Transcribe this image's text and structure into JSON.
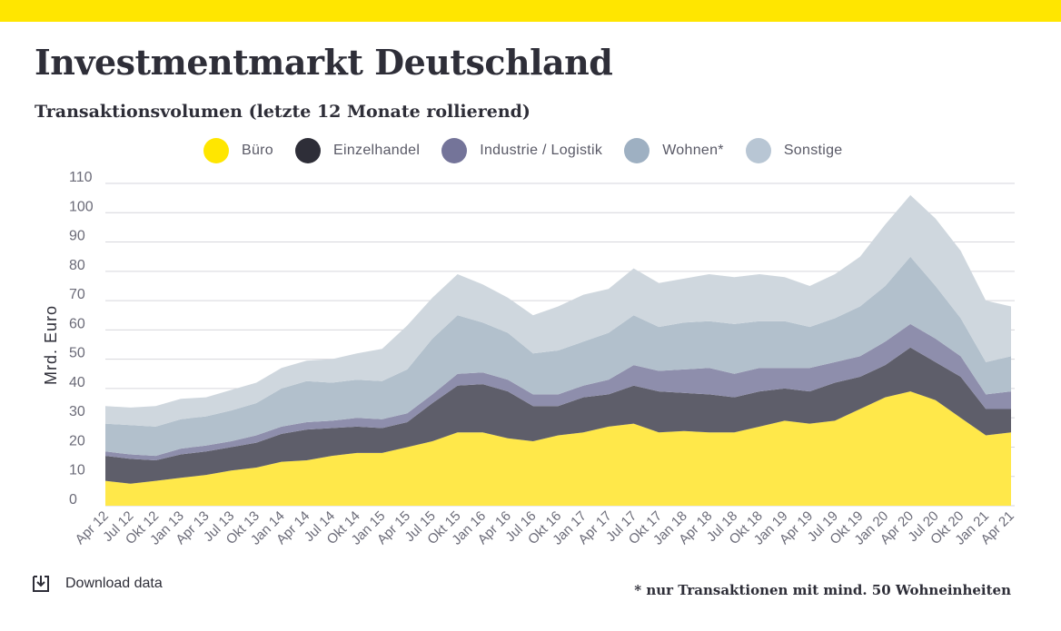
{
  "page": {
    "title": "Investmentmarkt Deutschland",
    "subtitle": "Transaktionsvolumen (letzte 12 Monate rollierend)",
    "download_label": "Download data",
    "footnote": "* nur Transaktionen mit mind. 50 Wohneinheiten"
  },
  "colors": {
    "brand_yellow": "#ffe600",
    "buero": "#ffe84a",
    "einzelhandel": "#5e5e6a",
    "industrie": "#8e8eac",
    "wohnen": "#b2c0cc",
    "sonstige": "#cfd7de"
  },
  "icons": {
    "download": "download-icon"
  },
  "chart_data": {
    "type": "area",
    "stacked": true,
    "ylabel": "Mrd. Euro",
    "xlabel": "",
    "ylim": [
      0,
      110
    ],
    "yticks": [
      0,
      10,
      20,
      30,
      40,
      50,
      60,
      70,
      80,
      90,
      100,
      110
    ],
    "grid": true,
    "legend_position": "top",
    "legend": [
      {
        "label": "Büro",
        "color": "#ffe600"
      },
      {
        "label": "Einzelhandel",
        "color": "#2e2e38"
      },
      {
        "label": "Industrie / Logistik",
        "color": "#747499"
      },
      {
        "label": "Wohnen*",
        "color": "#9eb0c2"
      },
      {
        "label": "Sonstige",
        "color": "#b8c6d4"
      }
    ],
    "x": [
      "Apr 12",
      "Jul 12",
      "Okt 12",
      "Jan 13",
      "Apr 13",
      "Jul 13",
      "Okt 13",
      "Jan 14",
      "Apr 14",
      "Jul 14",
      "Okt 14",
      "Jan 15",
      "Apr 15",
      "Jul 15",
      "Okt 15",
      "Jan 16",
      "Apr 16",
      "Jul 16",
      "Okt 16",
      "Jan 17",
      "Apr 17",
      "Jul 17",
      "Okt 17",
      "Jan 18",
      "Apr 18",
      "Jul 18",
      "Okt 18",
      "Jan 19",
      "Apr 19",
      "Jul 19",
      "Okt 19",
      "Jan 20",
      "Apr 20",
      "Jul 20",
      "Okt 20",
      "Jan 21",
      "Apr 21"
    ],
    "series": [
      {
        "name": "Büro",
        "color": "#ffe84a",
        "values": [
          8.5,
          7.5,
          8.5,
          9.5,
          10.5,
          12,
          13,
          15,
          15.5,
          17,
          18,
          18,
          20,
          22,
          25,
          25,
          23,
          22,
          24,
          25,
          27,
          28,
          25,
          25.5,
          25,
          25,
          27,
          29,
          28,
          29,
          33,
          37,
          39,
          36,
          30,
          24,
          25
        ]
      },
      {
        "name": "Einzelhandel",
        "color": "#5e5e6a",
        "values": [
          8.5,
          8.5,
          7,
          8,
          8,
          8,
          8.5,
          9.5,
          10.5,
          9.5,
          9,
          8.5,
          8.5,
          13,
          16,
          16.5,
          16,
          12,
          10,
          12,
          11,
          13,
          14,
          13,
          13,
          12,
          12,
          11,
          11,
          13,
          11,
          11,
          15,
          13,
          14,
          9,
          8
        ]
      },
      {
        "name": "Industrie / Logistik",
        "color": "#8e8eac",
        "values": [
          1.5,
          1.5,
          1.5,
          2,
          2,
          2,
          2.5,
          2.5,
          2.5,
          2.5,
          3,
          3,
          3,
          3,
          4,
          4,
          4,
          4,
          4,
          4,
          5,
          7,
          7,
          8,
          9,
          8,
          8,
          7,
          8,
          7,
          7,
          8,
          8,
          8,
          7,
          5,
          6
        ]
      },
      {
        "name": "Wohnen*",
        "color": "#b2c0cc",
        "values": [
          9.5,
          10,
          10,
          10,
          10,
          10.5,
          11,
          13,
          14,
          13,
          13,
          13,
          15,
          19,
          20,
          17,
          16,
          14,
          15,
          15,
          16,
          17,
          15,
          16,
          16,
          17,
          16,
          16,
          14,
          15,
          17,
          19,
          23,
          18,
          13,
          11,
          12
        ]
      },
      {
        "name": "Sonstige",
        "color": "#cfd7de",
        "values": [
          6,
          6,
          7,
          7,
          6.5,
          7,
          7,
          7,
          7,
          8,
          9,
          11,
          15,
          14,
          14,
          13,
          12,
          13,
          15,
          16,
          15,
          16,
          15,
          15,
          16,
          16,
          16,
          15,
          14,
          15,
          17,
          21,
          21,
          23,
          23,
          21,
          17
        ]
      }
    ]
  }
}
